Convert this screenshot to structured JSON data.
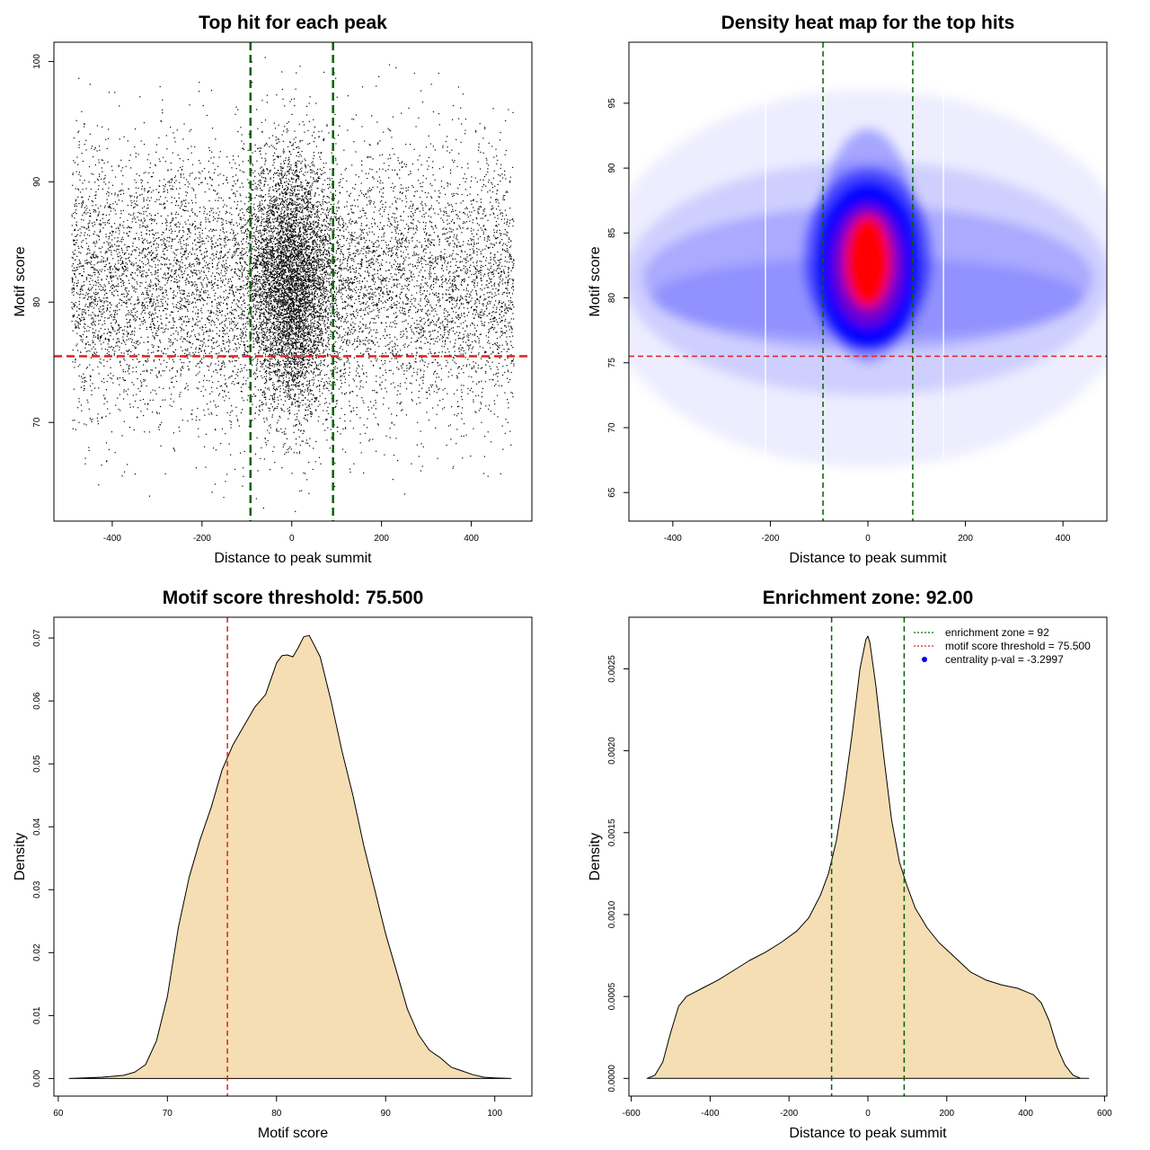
{
  "chart_data": [
    {
      "type": "scatter",
      "title": "Top hit for each peak",
      "xlabel": "Distance to peak summit",
      "ylabel": "Motif score",
      "xlim": [
        -530,
        535
      ],
      "ylim": [
        61.8,
        101.6
      ],
      "x_ticks": [
        {
          "value": -400,
          "label": "-400"
        },
        {
          "value": -200,
          "label": "-200"
        },
        {
          "value": 0,
          "label": "0"
        },
        {
          "value": 200,
          "label": "200"
        },
        {
          "value": 400,
          "label": "400"
        }
      ],
      "y_ticks": [
        {
          "value": 70,
          "label": "70"
        },
        {
          "value": 80,
          "label": "80"
        },
        {
          "value": 90,
          "label": "90"
        },
        {
          "value": 100,
          "label": "100"
        }
      ],
      "point_distribution": {
        "n_points": 14000,
        "x_range": [
          -490,
          495
        ],
        "y_mean": 81.5,
        "y_sd": 5.5,
        "central_fraction": 0.35,
        "central_x_sd": 45
      },
      "reference_lines": [
        {
          "orientation": "vertical",
          "value": -92,
          "color": "#006400",
          "style": "dashed"
        },
        {
          "orientation": "vertical",
          "value": 92,
          "color": "#006400",
          "style": "dashed"
        },
        {
          "orientation": "horizontal",
          "value": 75.5,
          "color": "#e02020",
          "style": "dashed"
        }
      ]
    },
    {
      "type": "heatmap",
      "title": "Density heat map for the top hits",
      "xlabel": "Distance to peak summit",
      "ylabel": "Motif score",
      "xlim": [
        -490,
        490
      ],
      "ylim": [
        62.8,
        99.7
      ],
      "x_ticks": [
        {
          "value": -400,
          "label": "-400"
        },
        {
          "value": -200,
          "label": "-200"
        },
        {
          "value": 0,
          "label": "0"
        },
        {
          "value": 200,
          "label": "200"
        },
        {
          "value": 400,
          "label": "400"
        }
      ],
      "y_ticks": [
        {
          "value": 65,
          "label": "65"
        },
        {
          "value": 70,
          "label": "70"
        },
        {
          "value": 75,
          "label": "75"
        },
        {
          "value": 80,
          "label": "80"
        },
        {
          "value": 85,
          "label": "85"
        },
        {
          "value": 90,
          "label": "90"
        },
        {
          "value": 95,
          "label": "95"
        }
      ],
      "color_scale": [
        "#ffffff",
        "#0000ff",
        "#ff0000"
      ],
      "density_center": {
        "x": 0,
        "y": 82.5
      },
      "reference_lines": [
        {
          "orientation": "vertical",
          "value": -92,
          "color": "#006400",
          "style": "dashed"
        },
        {
          "orientation": "vertical",
          "value": 92,
          "color": "#006400",
          "style": "dashed"
        },
        {
          "orientation": "horizontal",
          "value": 75.5,
          "color": "#e02020",
          "style": "dashed"
        }
      ]
    },
    {
      "type": "area",
      "title": "Motif score threshold: 75.500",
      "xlabel": "Motif score",
      "ylabel": "Density",
      "xlim": [
        59.6,
        103.4
      ],
      "ylim": [
        -0.0028,
        0.0733
      ],
      "fill_color": "#f5deb3",
      "x_ticks": [
        {
          "value": 60,
          "label": "60"
        },
        {
          "value": 70,
          "label": "70"
        },
        {
          "value": 80,
          "label": "80"
        },
        {
          "value": 90,
          "label": "90"
        },
        {
          "value": 100,
          "label": "100"
        }
      ],
      "y_ticks": [
        {
          "value": 0,
          "label": "0.00"
        },
        {
          "value": 0.01,
          "label": "0.01"
        },
        {
          "value": 0.02,
          "label": "0.02"
        },
        {
          "value": 0.03,
          "label": "0.03"
        },
        {
          "value": 0.04,
          "label": "0.04"
        },
        {
          "value": 0.05,
          "label": "0.05"
        },
        {
          "value": 0.06,
          "label": "0.06"
        },
        {
          "value": 0.07,
          "label": "0.07"
        }
      ],
      "x": [
        61,
        64,
        66,
        67,
        68,
        69,
        70,
        71,
        72,
        73,
        74,
        75,
        76,
        77,
        78,
        79,
        79.5,
        80,
        80.5,
        81,
        81.5,
        82,
        82.5,
        83,
        84,
        85,
        86,
        87,
        88,
        89,
        90,
        91,
        92,
        93,
        94,
        95,
        96,
        97,
        98,
        99,
        100,
        101.5
      ],
      "y": [
        0,
        0.0002,
        0.0005,
        0.001,
        0.0022,
        0.006,
        0.013,
        0.024,
        0.032,
        0.038,
        0.043,
        0.049,
        0.053,
        0.056,
        0.059,
        0.061,
        0.0635,
        0.066,
        0.0672,
        0.0673,
        0.067,
        0.0685,
        0.0702,
        0.0704,
        0.067,
        0.06,
        0.052,
        0.045,
        0.037,
        0.03,
        0.023,
        0.017,
        0.011,
        0.007,
        0.0045,
        0.0033,
        0.0018,
        0.0012,
        0.0006,
        0.0002,
        0.0001,
        0
      ],
      "reference_lines": [
        {
          "orientation": "vertical",
          "value": 75.5,
          "color": "#e02020",
          "style": "dashed"
        }
      ]
    },
    {
      "type": "area",
      "title": "Enrichment zone: 92.00",
      "xlabel": "Distance to peak summit",
      "ylabel": "Density",
      "xlim": [
        -606,
        606
      ],
      "ylim": [
        -0.000108,
        0.002815
      ],
      "fill_color": "#f5deb3",
      "x_ticks": [
        {
          "value": -600,
          "label": "-600"
        },
        {
          "value": -400,
          "label": "-400"
        },
        {
          "value": -200,
          "label": "-200"
        },
        {
          "value": 0,
          "label": "0"
        },
        {
          "value": 200,
          "label": "200"
        },
        {
          "value": 400,
          "label": "400"
        },
        {
          "value": 600,
          "label": "600"
        }
      ],
      "y_ticks": [
        {
          "value": 0,
          "label": "0.0000"
        },
        {
          "value": 0.0005,
          "label": "0.0005"
        },
        {
          "value": 0.001,
          "label": "0.0010"
        },
        {
          "value": 0.0015,
          "label": "0.0015"
        },
        {
          "value": 0.002,
          "label": "0.0020"
        },
        {
          "value": 0.0025,
          "label": "0.0025"
        }
      ],
      "x": [
        -560,
        -540,
        -520,
        -500,
        -480,
        -460,
        -420,
        -380,
        -340,
        -300,
        -260,
        -220,
        -180,
        -150,
        -120,
        -100,
        -80,
        -60,
        -40,
        -20,
        -5,
        0,
        5,
        20,
        40,
        60,
        80,
        100,
        120,
        150,
        180,
        220,
        260,
        300,
        340,
        380,
        420,
        440,
        460,
        480,
        500,
        520,
        540,
        560
      ],
      "y": [
        0,
        2e-05,
        0.0001,
        0.00028,
        0.00044,
        0.0005,
        0.00055,
        0.0006,
        0.00066,
        0.00072,
        0.00077,
        0.00083,
        0.0009,
        0.00098,
        0.00112,
        0.00125,
        0.00145,
        0.00175,
        0.0021,
        0.0025,
        0.00268,
        0.0027,
        0.00266,
        0.0024,
        0.00197,
        0.00158,
        0.00132,
        0.00117,
        0.00104,
        0.00092,
        0.00083,
        0.00074,
        0.00065,
        0.0006,
        0.00057,
        0.00055,
        0.00051,
        0.00046,
        0.00035,
        0.00019,
        8e-05,
        2e-05,
        0,
        0
      ],
      "reference_lines": [
        {
          "orientation": "vertical",
          "value": -92,
          "color": "#006400",
          "style": "dashed"
        },
        {
          "orientation": "vertical",
          "value": 92,
          "color": "#006400",
          "style": "dashed"
        }
      ],
      "legend": {
        "position": "top-right",
        "entries": [
          {
            "label": "enrichment zone = 92",
            "color": "#006400",
            "kind": "dotted-line"
          },
          {
            "label": "motif score threshold = 75.500",
            "color": "#e02020",
            "kind": "dotted-line"
          },
          {
            "label": "centrality p-val = -3.2997",
            "color": "#0000ff",
            "kind": "point"
          }
        ]
      }
    }
  ]
}
